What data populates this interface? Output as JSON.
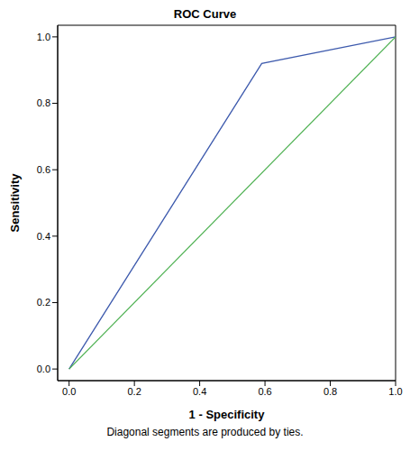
{
  "chart_data": {
    "type": "line",
    "title": "ROC Curve",
    "x_label": "1 - Specificity",
    "y_label": "Sensitivity",
    "footnote": "Diagonal segments are produced by ties.",
    "series": [
      {
        "color": "#3d5aad",
        "x": [
          0,
          0.59,
          1
        ],
        "values": [
          0,
          0.92,
          1
        ]
      },
      {
        "color": "#4cb050",
        "x": [
          0,
          1
        ],
        "values": [
          0,
          1
        ]
      }
    ],
    "xlim": [
      -0.035,
      1.0
    ],
    "ylim": [
      -0.035,
      1.035
    ],
    "xticks": [
      {
        "value": 0,
        "label": "0.0"
      },
      0.2,
      0.4,
      0.6,
      0.8,
      {
        "value": 1,
        "label": "1.0"
      }
    ],
    "yticks": [
      {
        "value": 0,
        "label": "0.0"
      },
      0.2,
      0.4,
      0.6,
      0.8,
      {
        "value": 1,
        "label": "1.0"
      }
    ],
    "grid": false,
    "marker": "none"
  }
}
